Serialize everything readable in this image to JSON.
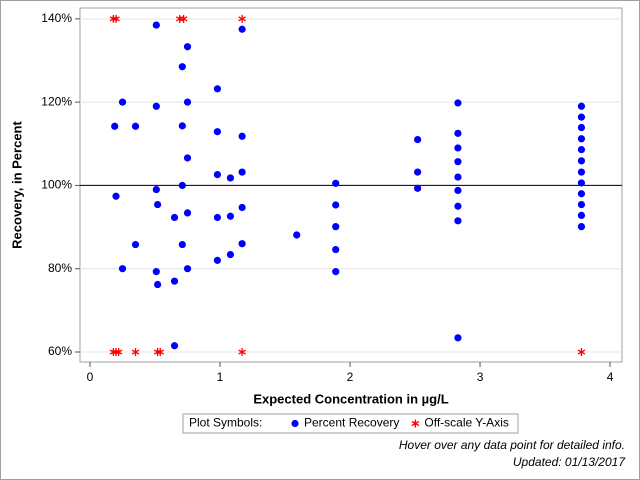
{
  "chart_data": {
    "type": "scatter",
    "x_label": "Expected Concentration in µg/L",
    "y_label": "Recovery, in Percent",
    "xlim": [
      -0.077,
      4.092
    ],
    "ylim": [
      57.6,
      142.6
    ],
    "xticks": [
      0,
      1,
      2,
      3,
      4
    ],
    "yticks": [
      {
        "value": 60,
        "label": "60%"
      },
      {
        "value": 80,
        "label": "80%"
      },
      {
        "value": 100,
        "label": "100%"
      },
      {
        "value": 120,
        "label": "120%"
      },
      {
        "value": 140,
        "label": "140%"
      }
    ],
    "grid": true,
    "reference_line": 100,
    "legend_title": "Plot Symbols:",
    "series": [
      {
        "name": "Percent Recovery",
        "color": "#0000ff",
        "marker": "circle",
        "x": [
          0.19,
          0.2,
          0.25,
          0.25,
          0.35,
          0.35,
          0.51,
          0.51,
          0.51,
          0.51,
          0.52,
          0.52,
          0.65,
          0.65,
          0.65,
          0.71,
          0.71,
          0.71,
          0.71,
          0.75,
          0.75,
          0.75,
          0.75,
          0.75,
          0.98,
          0.98,
          0.98,
          0.98,
          0.98,
          1.08,
          1.08,
          1.08,
          1.17,
          1.17,
          1.17,
          1.17,
          1.17,
          1.59,
          1.89,
          1.89,
          1.89,
          1.89,
          1.89,
          2.52,
          2.52,
          2.52,
          2.83,
          2.83,
          2.83,
          2.83,
          2.83,
          2.83,
          2.83,
          2.83,
          2.83,
          3.78,
          3.78,
          3.78,
          3.78,
          3.78,
          3.78,
          3.78,
          3.78,
          3.78,
          3.78,
          3.78,
          3.78
        ],
        "values": [
          114.2,
          97.4,
          120,
          80,
          114.2,
          85.8,
          138.5,
          119,
          99,
          79.3,
          95.4,
          76.2,
          92.3,
          77,
          61.5,
          128.5,
          114.3,
          100,
          85.8,
          133.3,
          120,
          106.6,
          93.4,
          80,
          123.2,
          112.9,
          102.6,
          92.3,
          82,
          101.8,
          92.6,
          83.4,
          137.5,
          111.8,
          103.2,
          94.7,
          86,
          88.1,
          100.5,
          95.3,
          90.1,
          84.6,
          79.3,
          111,
          103.2,
          99.3,
          119.8,
          112.5,
          109,
          105.7,
          102,
          98.8,
          95,
          91.5,
          63.4,
          119,
          116.4,
          113.9,
          111.2,
          108.6,
          105.9,
          103.2,
          100.6,
          98,
          95.4,
          92.8,
          90.1
        ]
      },
      {
        "name": "Off-scale Y-Axis",
        "color": "#ff0000",
        "marker": "star",
        "x": [
          0.18,
          0.2,
          0.69,
          0.72,
          1.17,
          0.18,
          0.2,
          0.22,
          0.35,
          0.52,
          0.54,
          1.17,
          3.78
        ],
        "values": [
          140,
          140,
          140,
          140,
          140,
          60,
          60,
          60,
          60,
          60,
          60,
          60,
          60
        ]
      }
    ],
    "notes": [
      "Hover over any data point for detailed info.",
      "Updated: 01/13/2017"
    ]
  }
}
